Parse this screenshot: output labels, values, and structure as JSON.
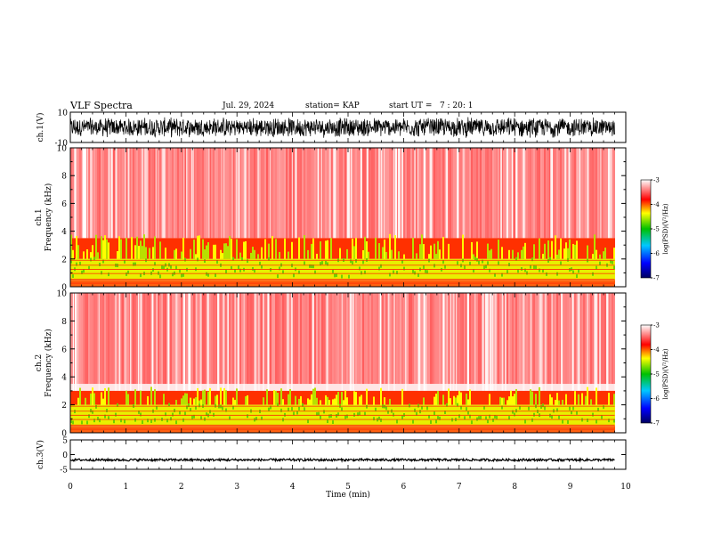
{
  "header": {
    "title": "VLF Spectra",
    "date": "Jul. 29, 2024",
    "station": "station= KAP",
    "start": "start UT =   7 : 20: 1"
  },
  "chart_data": [
    {
      "type": "line",
      "panel": "ch1-waveform",
      "ylabel": "ch.1(V)",
      "ylim": [
        -10,
        10
      ],
      "yticks": [
        "10",
        "-10"
      ],
      "xlim": [
        0,
        10
      ],
      "trace_range_v": [
        -7,
        7
      ]
    },
    {
      "type": "heatmap",
      "panel": "ch1-spectrogram",
      "ylabel_top": "ch.1",
      "ylabel": "Frequency (kHz)",
      "ylim": [
        0,
        10
      ],
      "yticks": [
        "0",
        "2",
        "4",
        "6",
        "8",
        "10"
      ],
      "xlim": [
        0,
        10
      ],
      "data_end_min": 9.8,
      "bands_khz": [
        {
          "from": 0,
          "to": 0.5,
          "level": "red-orange"
        },
        {
          "from": 0.5,
          "to": 2.0,
          "level": "yellow-green strong"
        },
        {
          "from": 2.0,
          "to": 3.5,
          "level": "red with yellow-green patches"
        },
        {
          "from": 3.5,
          "to": 10,
          "level": "red speckle fading"
        }
      ]
    },
    {
      "type": "heatmap",
      "panel": "ch2-spectrogram",
      "ylabel_top": "ch.2",
      "ylabel": "Frequency (kHz)",
      "ylim": [
        0,
        10
      ],
      "yticks": [
        "0",
        "2",
        "4",
        "6",
        "8",
        "10"
      ],
      "xlim": [
        0,
        10
      ],
      "data_end_min": 9.8,
      "bands_khz": [
        {
          "from": 0,
          "to": 0.5,
          "level": "red-orange"
        },
        {
          "from": 0.5,
          "to": 2.0,
          "level": "yellow-green strong"
        },
        {
          "from": 2.0,
          "to": 3.0,
          "level": "red with yellow-green patches"
        },
        {
          "from": 3.0,
          "to": 10,
          "level": "red speckle fading"
        }
      ]
    },
    {
      "type": "line",
      "panel": "ch3-waveform",
      "ylabel": "ch.3(V)",
      "ylim": [
        -5,
        5
      ],
      "yticks": [
        "5",
        "0",
        "-5"
      ],
      "xlim": [
        0,
        10
      ],
      "trace_range_v": [
        -2.2,
        -1.4
      ]
    }
  ],
  "xaxis": {
    "label": "Time (min)",
    "ticks": [
      "0",
      "1",
      "2",
      "3",
      "4",
      "5",
      "6",
      "7",
      "8",
      "9",
      "10"
    ]
  },
  "colorbar": {
    "label": "log(PSD)(V²/Hz)",
    "ticks": [
      "-3",
      "-4",
      "-5",
      "-6",
      "-7"
    ],
    "range": [
      -7,
      -3
    ]
  },
  "colors": {
    "low": "#000080",
    "mid_low": "#0090ff",
    "mid": "#00c000",
    "mid_high": "#ffff00",
    "high": "#ff0000",
    "top": "#ffffff"
  }
}
